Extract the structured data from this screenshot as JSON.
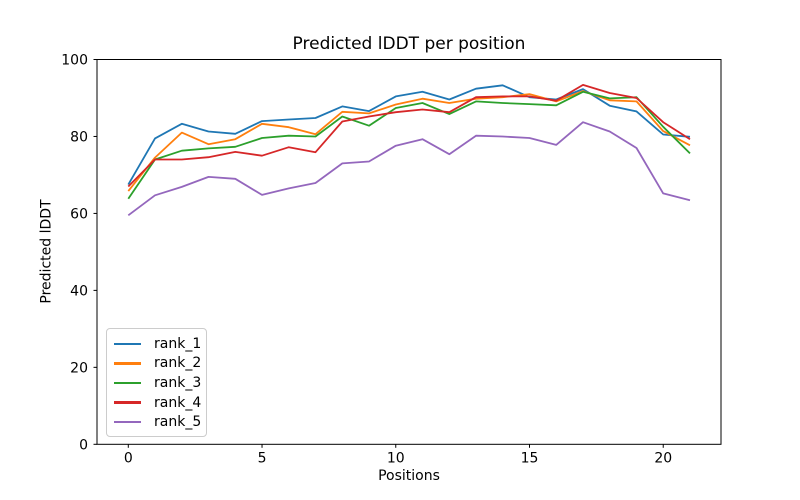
{
  "chart_data": {
    "type": "line",
    "title": "Predicted lDDT per position",
    "xlabel": "Positions",
    "ylabel": "Predicted lDDT",
    "x": [
      0,
      1,
      2,
      3,
      4,
      5,
      6,
      7,
      8,
      9,
      10,
      11,
      12,
      13,
      14,
      15,
      16,
      17,
      18,
      19,
      20,
      21
    ],
    "series": [
      {
        "name": "rank_1",
        "color": "#1f77b4",
        "values": [
          67.5,
          79.5,
          83.3,
          81.3,
          80.7,
          84.0,
          84.4,
          84.8,
          87.8,
          86.6,
          90.4,
          91.6,
          89.6,
          92.4,
          93.3,
          90.2,
          89.6,
          92.3,
          88.0,
          86.5,
          80.5,
          79.9
        ]
      },
      {
        "name": "rank_2",
        "color": "#ff7f0e",
        "values": [
          65.8,
          74.5,
          81.0,
          78.0,
          79.3,
          83.3,
          82.4,
          80.6,
          86.4,
          86.0,
          88.3,
          89.8,
          88.7,
          89.8,
          90.2,
          91.0,
          89.1,
          91.8,
          89.4,
          89.1,
          81.4,
          77.7
        ]
      },
      {
        "name": "rank_3",
        "color": "#2ca02c",
        "values": [
          63.8,
          74.0,
          76.3,
          76.9,
          77.3,
          79.6,
          80.2,
          80.0,
          85.2,
          82.8,
          87.4,
          88.7,
          85.8,
          89.1,
          88.7,
          88.4,
          88.1,
          91.6,
          89.9,
          90.2,
          82.5,
          75.6
        ]
      },
      {
        "name": "rank_4",
        "color": "#d62728",
        "values": [
          67.0,
          74.0,
          74.0,
          74.6,
          76.0,
          75.0,
          77.2,
          75.9,
          83.9,
          85.2,
          86.3,
          87.0,
          86.3,
          90.2,
          90.4,
          90.4,
          89.3,
          93.4,
          91.3,
          90.0,
          83.7,
          79.3
        ]
      },
      {
        "name": "rank_5",
        "color": "#9467bd",
        "values": [
          59.5,
          64.7,
          66.9,
          69.5,
          69.0,
          64.8,
          66.5,
          67.9,
          73.0,
          73.5,
          77.6,
          79.3,
          75.4,
          80.2,
          80.0,
          79.6,
          77.8,
          83.7,
          81.3,
          77.0,
          65.2,
          63.4
        ]
      }
    ],
    "xticks": [
      0,
      5,
      10,
      15,
      20
    ],
    "yticks": [
      0,
      20,
      40,
      60,
      80,
      100
    ],
    "xlim": [
      -1.17,
      22.16
    ],
    "ylim": [
      0,
      100
    ],
    "grid": false,
    "legend": {
      "position": "lower left",
      "entries": [
        "rank_1",
        "rank_2",
        "rank_3",
        "rank_4",
        "rank_5"
      ]
    },
    "axis_color": "#000000",
    "background": "#ffffff"
  }
}
